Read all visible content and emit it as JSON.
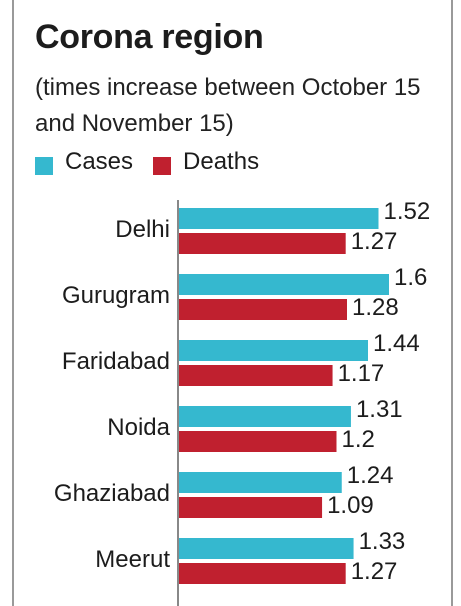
{
  "title": "Corona region",
  "subtitle": "(times increase between October 15 and November 15)",
  "colors": {
    "cases": "#35b8cf",
    "deaths": "#c0202f",
    "axis": "#888888"
  },
  "chart_data": {
    "type": "bar",
    "orientation": "horizontal",
    "title": "Corona region",
    "subtitle": "(times increase between October 15 and November 15)",
    "categories": [
      "Delhi",
      "Gurugram",
      "Faridabad",
      "Noida",
      "Ghaziabad",
      "Meerut"
    ],
    "series": [
      {
        "name": "Cases",
        "color": "#35b8cf",
        "values": [
          1.52,
          1.6,
          1.44,
          1.31,
          1.24,
          1.33
        ],
        "labels": [
          "1.52",
          "1.6",
          "1.44",
          "1.31",
          "1.24",
          "1.33"
        ]
      },
      {
        "name": "Deaths",
        "color": "#c0202f",
        "values": [
          1.27,
          1.28,
          1.17,
          1.2,
          1.09,
          1.27
        ],
        "labels": [
          "1.27",
          "1.28",
          "1.17",
          "1.2",
          "1.09",
          "1.27"
        ]
      }
    ],
    "legend_position": "top-left",
    "grid": false
  }
}
